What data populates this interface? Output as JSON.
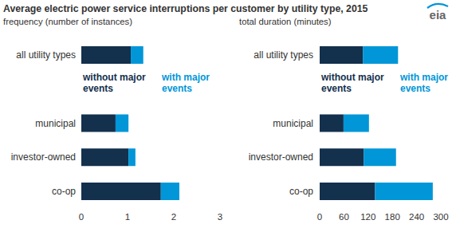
{
  "title": "Average electric power service interruptions per customer by utility type, 2015",
  "logo": "eia",
  "chart_data": [
    {
      "type": "bar",
      "orientation": "horizontal",
      "stacked": true,
      "subtitle": "frequency (number of instances)",
      "categories": [
        "all utility types",
        "municipal",
        "investor-owned",
        "co-op"
      ],
      "series": [
        {
          "name": "without major events",
          "color": "#13304d",
          "values": [
            1.07,
            0.74,
            1.02,
            1.72
          ]
        },
        {
          "name": "with major events",
          "color": "#0096d7",
          "values": [
            0.27,
            0.28,
            0.15,
            0.4
          ]
        }
      ],
      "xlim": [
        0,
        3
      ],
      "xticks": [
        0,
        1,
        2,
        3
      ],
      "grid": false
    },
    {
      "type": "bar",
      "orientation": "horizontal",
      "stacked": true,
      "subtitle": "total duration (minutes)",
      "categories": [
        "all utility types",
        "municipal",
        "investor-owned",
        "co-op"
      ],
      "series": [
        {
          "name": "without major events",
          "color": "#13304d",
          "values": [
            107,
            59,
            109,
            137
          ]
        },
        {
          "name": "with major events",
          "color": "#0096d7",
          "values": [
            87,
            63,
            80,
            143
          ]
        }
      ],
      "xlim": [
        0,
        300
      ],
      "xticks": [
        0,
        60,
        120,
        180,
        240,
        300
      ],
      "grid": false
    }
  ]
}
